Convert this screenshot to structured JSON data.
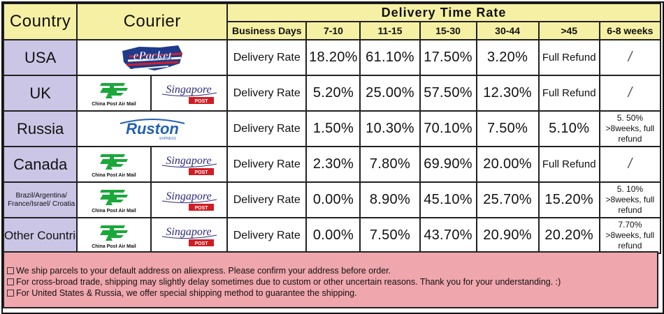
{
  "header": {
    "country": "Country",
    "courier": "Courier",
    "delivery_time_rate": "Delivery Time Rate",
    "columns": [
      "Business Days",
      "7-10",
      "11-15",
      "15-30",
      "30-44",
      ">45",
      "6-8 weeks"
    ]
  },
  "couriers": {
    "epacket": "ePacket",
    "china_post_caption": "China Post Air Mail",
    "singapore_text": "Singapore",
    "singapore_post": "POST",
    "ruston_text": "Ruston",
    "ruston_sub": "EXPRESS"
  },
  "rows": [
    {
      "country": "USA",
      "label": "Delivery Rate",
      "v1": "18.20%",
      "v2": "61.10%",
      "v3": "17.50%",
      "v4": "3.20%",
      "v5": "Full Refund",
      "v6": "/"
    },
    {
      "country": "UK",
      "label": "Delivery Rate",
      "v1": "5.20%",
      "v2": "25.00%",
      "v3": "57.50%",
      "v4": "12.30%",
      "v5": "Full Refund",
      "v6": "/"
    },
    {
      "country": "Russia",
      "label": "Delivery Rate",
      "v1": "1.50%",
      "v2": "10.30%",
      "v3": "70.10%",
      "v4": "7.50%",
      "v5": "5.10%",
      "v6": "5. 50% >8weeks, full refund"
    },
    {
      "country": "Canada",
      "label": "Delivery Rate",
      "v1": "2.30%",
      "v2": "7.80%",
      "v3": "69.90%",
      "v4": "20.00%",
      "v5": "Full Refund",
      "v6": "/"
    },
    {
      "country": "Brazil/Argentina/ France/Israel/ Croatia",
      "label": "Delivery Rate",
      "v1": "0.00%",
      "v2": "8.90%",
      "v3": "45.10%",
      "v4": "25.70%",
      "v5": "15.20%",
      "v6": "5. 10% >8weeks, full refund"
    },
    {
      "country": "Other Countries",
      "label": "Delivery Rate",
      "v1": "0.00%",
      "v2": "7.50%",
      "v3": "43.70%",
      "v4": "20.90%",
      "v5": "20.20%",
      "v6": "7.70% >8weeks, full refund"
    }
  ],
  "footer": [
    "We ship parcels to your default address on aliexpress. Please confirm your address before order.",
    "For cross-broad trade, shipping may slightly delay sometimes due to custom or other uncertain reasons. Thank you for your understanding. :)",
    "For United States & Russia, we offer special shipping method to guarantee the shipping."
  ],
  "colors": {
    "header_yellow": "#f6f0a4",
    "country_lavender": "#cbc6e6",
    "footer_pink": "#f0a6ad",
    "china_post_green": "#1aa83a",
    "singapore_red": "#d01c22",
    "epacket_blue": "#1f3a8a",
    "epacket_red": "#d21f2b",
    "ruston_blue": "#2360b5"
  }
}
